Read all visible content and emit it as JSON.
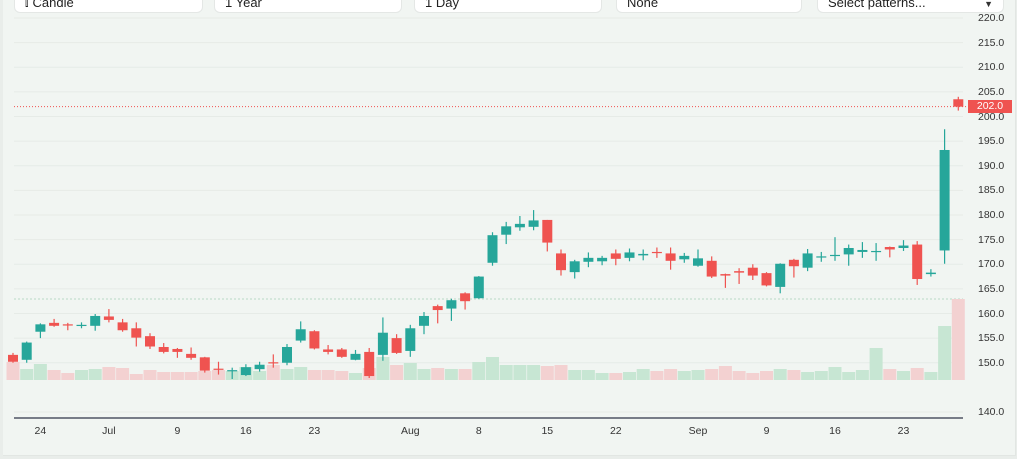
{
  "toolbar": {
    "chart_type": {
      "label": "Candle",
      "icon": "candlestick-icon"
    },
    "range": {
      "label": "1 Year"
    },
    "interval": {
      "label": "1 Day"
    },
    "indicator": {
      "label": "None"
    },
    "patterns": {
      "label": "Select patterns...",
      "icon": "chevron-down-icon"
    }
  },
  "chart_data": {
    "type": "candlestick",
    "title": "",
    "last_price": "202.0",
    "colors": {
      "up": "#26a69a",
      "down": "#ef5350",
      "volume_up": "#c7e6d3",
      "volume_down": "#f3d1d1"
    },
    "yaxis": {
      "range": [
        140,
        220
      ],
      "ticks": [
        "220.0",
        "215.0",
        "210.0",
        "205.0",
        "200.0",
        "195.0",
        "190.0",
        "185.0",
        "180.0",
        "175.0",
        "170.0",
        "165.0",
        "160.0",
        "155.0",
        "150.0",
        "140.0"
      ]
    },
    "xaxis": {
      "ticks": [
        {
          "label": "24",
          "index": 2
        },
        {
          "label": "Jul",
          "index": 7
        },
        {
          "label": "9",
          "index": 12
        },
        {
          "label": "16",
          "index": 17
        },
        {
          "label": "23",
          "index": 22
        },
        {
          "label": "Aug",
          "index": 29
        },
        {
          "label": "8",
          "index": 34
        },
        {
          "label": "15",
          "index": 39
        },
        {
          "label": "22",
          "index": 44
        },
        {
          "label": "Sep",
          "index": 50
        },
        {
          "label": "9",
          "index": 55
        },
        {
          "label": "16",
          "index": 60
        },
        {
          "label": "23",
          "index": 65
        }
      ]
    },
    "grid": true,
    "ohlc": [
      [
        151.6,
        152.0,
        150.0,
        150.2
      ],
      [
        150.6,
        154.3,
        150.0,
        154.1
      ],
      [
        156.3,
        158.0,
        155.0,
        157.8
      ],
      [
        158.1,
        158.9,
        157.3,
        157.5
      ],
      [
        157.8,
        158.1,
        156.6,
        157.6
      ],
      [
        157.5,
        158.2,
        157.0,
        157.7
      ],
      [
        157.5,
        159.9,
        156.5,
        159.5
      ],
      [
        159.4,
        160.9,
        158.2,
        158.7
      ],
      [
        158.2,
        158.9,
        156.3,
        156.6
      ],
      [
        157.0,
        158.2,
        153.3,
        155.1
      ],
      [
        155.4,
        156.0,
        152.8,
        153.3
      ],
      [
        153.2,
        154.0,
        151.9,
        152.2
      ],
      [
        152.8,
        153.0,
        151.0,
        152.2
      ],
      [
        151.8,
        153.1,
        150.6,
        151.0
      ],
      [
        151.1,
        151.2,
        148.0,
        148.4
      ],
      [
        148.8,
        150.2,
        147.6,
        148.6
      ],
      [
        148.3,
        149.0,
        146.7,
        148.5
      ],
      [
        147.5,
        149.7,
        147.3,
        149.1
      ],
      [
        148.7,
        150.2,
        148.2,
        149.6
      ],
      [
        150.1,
        151.7,
        149.0,
        149.9
      ],
      [
        150.0,
        153.8,
        149.5,
        153.2
      ],
      [
        154.5,
        158.4,
        154.1,
        156.8
      ],
      [
        156.4,
        156.6,
        152.7,
        152.9
      ],
      [
        152.7,
        153.6,
        151.7,
        152.2
      ],
      [
        152.7,
        153.0,
        151.0,
        151.2
      ],
      [
        150.6,
        152.6,
        150.5,
        151.8
      ],
      [
        152.2,
        153.0,
        146.9,
        147.3
      ],
      [
        151.6,
        159.2,
        150.4,
        156.1
      ],
      [
        155.0,
        155.8,
        151.8,
        152.0
      ],
      [
        152.4,
        157.7,
        151.2,
        157.0
      ],
      [
        157.5,
        160.3,
        155.8,
        159.5
      ],
      [
        161.5,
        161.8,
        158.0,
        160.7
      ],
      [
        161.0,
        163.0,
        158.5,
        162.7
      ],
      [
        164.1,
        164.3,
        160.8,
        162.5
      ],
      [
        163.1,
        167.6,
        163.0,
        167.5
      ],
      [
        170.3,
        176.5,
        169.7,
        175.9
      ],
      [
        176.0,
        178.6,
        174.1,
        177.7
      ],
      [
        177.5,
        179.8,
        176.8,
        178.2
      ],
      [
        177.6,
        181.0,
        176.9,
        178.9
      ],
      [
        179.0,
        179.0,
        172.6,
        174.4
      ],
      [
        172.2,
        173.0,
        167.7,
        168.8
      ],
      [
        168.4,
        170.9,
        167.1,
        170.6
      ],
      [
        170.5,
        172.4,
        169.4,
        171.3
      ],
      [
        170.6,
        171.7,
        169.8,
        171.3
      ],
      [
        172.2,
        173.0,
        169.8,
        171.1
      ],
      [
        171.3,
        173.2,
        170.6,
        172.4
      ],
      [
        171.8,
        173.0,
        170.8,
        172.1
      ],
      [
        172.5,
        173.4,
        171.3,
        172.3
      ],
      [
        172.2,
        173.4,
        168.9,
        170.7
      ],
      [
        171.0,
        172.3,
        170.3,
        171.7
      ],
      [
        169.7,
        173.0,
        169.5,
        171.2
      ],
      [
        170.7,
        171.6,
        167.2,
        167.5
      ],
      [
        168.0,
        168.1,
        165.2,
        167.7
      ],
      [
        168.6,
        169.2,
        166.0,
        168.3
      ],
      [
        169.3,
        170.0,
        166.8,
        167.7
      ],
      [
        168.2,
        168.4,
        165.5,
        165.7
      ],
      [
        165.4,
        170.2,
        164.1,
        170.1
      ],
      [
        170.9,
        171.1,
        167.3,
        169.6
      ],
      [
        169.3,
        173.1,
        168.6,
        172.2
      ],
      [
        171.4,
        172.5,
        170.5,
        171.6
      ],
      [
        171.7,
        175.5,
        170.7,
        171.9
      ],
      [
        172.0,
        174.0,
        169.7,
        173.3
      ],
      [
        172.5,
        174.5,
        171.3,
        172.9
      ],
      [
        172.5,
        174.3,
        170.7,
        172.7
      ],
      [
        173.5,
        173.6,
        171.4,
        173.0
      ],
      [
        173.3,
        174.9,
        172.7,
        173.8
      ],
      [
        174.0,
        174.7,
        165.8,
        167.0
      ],
      [
        168.0,
        169.0,
        167.5,
        168.3
      ],
      [
        172.8,
        197.4,
        170.1,
        193.2
      ],
      [
        203.5,
        204.0,
        201.2,
        202.0
      ]
    ],
    "volume_relative": [
      18,
      11,
      16,
      10,
      7,
      10,
      11,
      13,
      12,
      6,
      10,
      8,
      8,
      8,
      9,
      10,
      9,
      13,
      9,
      15,
      11,
      13,
      10,
      10,
      9,
      7,
      12,
      23,
      15,
      17,
      11,
      12,
      11,
      11,
      18,
      23,
      15,
      15,
      15,
      14,
      15,
      10,
      10,
      7,
      7,
      8,
      11,
      9,
      11,
      9,
      10,
      11,
      14,
      9,
      7,
      9,
      11,
      10,
      8,
      9,
      13,
      8,
      10,
      32,
      11,
      9,
      12,
      8,
      54,
      81
    ]
  }
}
